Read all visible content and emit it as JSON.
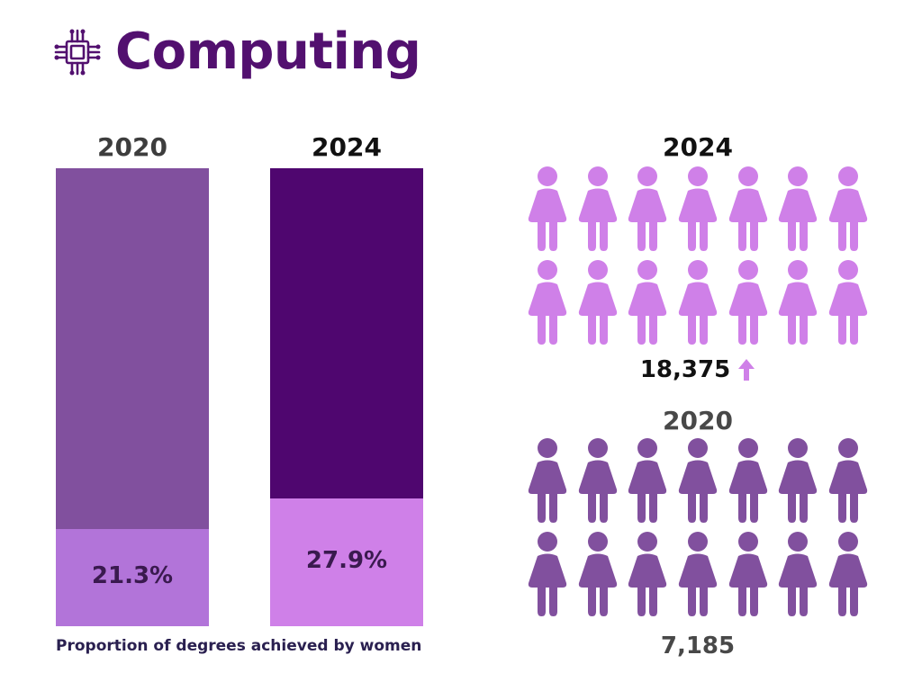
{
  "title": "Computing",
  "icon": "circuit-chip-icon",
  "colors": {
    "title": "#52106f",
    "bar_2020_rest": "#81509e",
    "bar_2020_women": "#b274d9",
    "bar_2024_rest": "#4f066f",
    "bar_2024_women": "#cf80e8",
    "women_2024": "#cf80e8",
    "women_2020": "#81509e",
    "arrow": "#cf80e8"
  },
  "chart_data": [
    {
      "type": "bar",
      "title": "",
      "categories": [
        "2020",
        "2024"
      ],
      "series": [
        {
          "values": [
            21.3,
            27.9
          ]
        }
      ],
      "value_labels": [
        "21.3%",
        "27.9%"
      ],
      "ylim": [
        0,
        100
      ],
      "unit": "%",
      "stacked_to": 100,
      "caption": "Proportion of degrees achieved by women"
    },
    {
      "type": "pictogram",
      "icon": "woman-icon",
      "groups": [
        {
          "label": "2024",
          "value": 18375,
          "value_label": "18,375",
          "icons": 14,
          "trend": "up"
        },
        {
          "label": "2020",
          "value": 7185,
          "value_label": "7,185",
          "icons": 14
        }
      ]
    }
  ]
}
